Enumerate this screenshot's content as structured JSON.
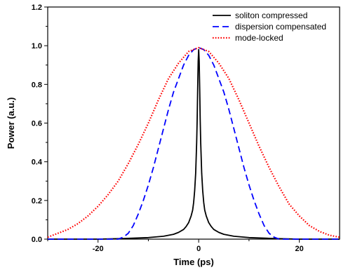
{
  "chart_data": {
    "type": "line",
    "title": "",
    "xlabel": "Time (ps)",
    "ylabel": "Power (a.u.)",
    "xlim": [
      -30,
      28
    ],
    "ylim": [
      0,
      1.2
    ],
    "x_ticks": [
      -20,
      0,
      20
    ],
    "x_tick_labels": [
      "-20",
      "0",
      "20"
    ],
    "y_ticks": [
      0.0,
      0.2,
      0.4,
      0.6,
      0.8,
      1.0,
      1.2
    ],
    "y_tick_labels": [
      "0.0",
      "0.2",
      "0.4",
      "0.6",
      "0.8",
      "1.0",
      "1.2"
    ],
    "grid": false,
    "legend_position": "top-right",
    "series": [
      {
        "name": "soliton compressed",
        "color": "#000000",
        "style": "solid",
        "x": [
          -30,
          -25,
          -20,
          -15,
          -10,
          -7,
          -5,
          -4,
          -3,
          -2.5,
          -2,
          -1.5,
          -1.2,
          -1,
          -0.8,
          -0.6,
          -0.4,
          -0.3,
          -0.2,
          -0.1,
          0,
          0.1,
          0.2,
          0.3,
          0.4,
          0.6,
          0.8,
          1,
          1.2,
          1.5,
          2,
          2.5,
          3,
          4,
          5,
          7,
          10,
          15,
          20,
          25,
          28
        ],
        "y": [
          0.0,
          0.0,
          0.0,
          0.003,
          0.008,
          0.015,
          0.025,
          0.035,
          0.05,
          0.065,
          0.085,
          0.12,
          0.15,
          0.19,
          0.25,
          0.34,
          0.5,
          0.62,
          0.78,
          0.92,
          0.98,
          0.92,
          0.78,
          0.62,
          0.5,
          0.34,
          0.25,
          0.19,
          0.15,
          0.12,
          0.085,
          0.065,
          0.05,
          0.035,
          0.025,
          0.015,
          0.008,
          0.003,
          0.0,
          0.0,
          0.0
        ]
      },
      {
        "name": "dispersion compensated",
        "color": "#0000ff",
        "style": "dashed",
        "x": [
          -30,
          -20,
          -16,
          -15,
          -14,
          -13,
          -12,
          -11,
          -10,
          -9,
          -8,
          -7,
          -6,
          -5,
          -4,
          -3,
          -2,
          -1,
          0,
          1,
          2,
          3,
          4,
          5,
          6,
          7,
          8,
          9,
          10,
          11,
          12,
          13,
          14,
          15,
          16,
          20,
          28
        ],
        "y": [
          0.0,
          0.0,
          0.0,
          0.01,
          0.03,
          0.07,
          0.13,
          0.2,
          0.28,
          0.37,
          0.47,
          0.57,
          0.67,
          0.76,
          0.83,
          0.9,
          0.95,
          0.98,
          0.99,
          0.98,
          0.95,
          0.9,
          0.83,
          0.76,
          0.67,
          0.57,
          0.47,
          0.37,
          0.28,
          0.2,
          0.13,
          0.07,
          0.03,
          0.01,
          0.0,
          0.0,
          0.0
        ]
      },
      {
        "name": "mode-locked",
        "color": "#ff0000",
        "style": "dotted",
        "x": [
          -30,
          -28,
          -26,
          -24,
          -22,
          -20,
          -18,
          -16,
          -14,
          -12,
          -10,
          -8,
          -6,
          -4,
          -2,
          0,
          2,
          4,
          6,
          8,
          10,
          12,
          14,
          16,
          18,
          20,
          22,
          24,
          26,
          28
        ],
        "y": [
          0.01,
          0.03,
          0.05,
          0.08,
          0.12,
          0.17,
          0.23,
          0.3,
          0.39,
          0.49,
          0.6,
          0.72,
          0.83,
          0.91,
          0.97,
          0.99,
          0.97,
          0.91,
          0.83,
          0.72,
          0.6,
          0.48,
          0.37,
          0.27,
          0.18,
          0.12,
          0.07,
          0.04,
          0.02,
          0.01
        ]
      }
    ]
  }
}
